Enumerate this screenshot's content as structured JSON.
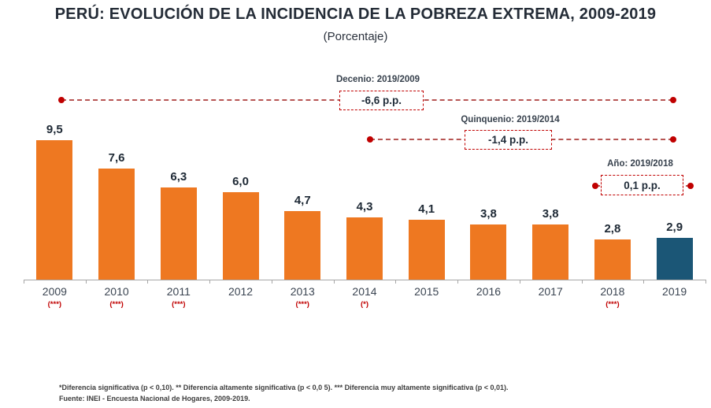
{
  "header": {
    "title": "PERÚ: EVOLUCIÓN DE LA INCIDENCIA DE LA POBREZA EXTREMA, 2009-2019",
    "subtitle": "(Porcentaje)"
  },
  "chart_data": {
    "type": "bar",
    "title": "PERÚ: EVOLUCIÓN DE LA INCIDENCIA DE LA POBREZA EXTREMA, 2009-2019",
    "subtitle": "(Porcentaje)",
    "categories": [
      "2009",
      "2010",
      "2011",
      "2012",
      "2013",
      "2014",
      "2015",
      "2016",
      "2017",
      "2018",
      "2019"
    ],
    "values": [
      9.5,
      7.6,
      6.3,
      6.0,
      4.7,
      4.3,
      4.1,
      3.8,
      3.8,
      2.8,
      2.9
    ],
    "value_labels": [
      "9,5",
      "7,6",
      "6,3",
      "6,0",
      "4,7",
      "4,3",
      "4,1",
      "3,8",
      "3,8",
      "2,8",
      "2,9"
    ],
    "significance_markers": [
      "(***)",
      "(***)",
      "(***)",
      "",
      "(***)",
      "(*)",
      "",
      "",
      "",
      "(***)",
      ""
    ],
    "highlight_index": 10,
    "ylim": [
      0,
      10
    ],
    "grid": false,
    "legend": "none",
    "colors": {
      "bar": "#ee7821",
      "bar_highlight": "#1b5676",
      "accent_red": "#c00000",
      "dash_red": "#b75553"
    },
    "annotations": [
      {
        "label": "Decenio: 2019/2009",
        "value": "-6,6 p.p."
      },
      {
        "label": "Quinquenio: 2019/2014",
        "value": "-1,4 p.p."
      },
      {
        "label": "Año:  2019/2018",
        "value": "0,1 p.p."
      }
    ]
  },
  "footer": {
    "note": "*Diferencia  significativa  (p <  0,10).   ** Diferencia  altamente  significativa  (p < 0,0 5). *** Diferencia  muy  altamente  significativa  (p < 0,01).",
    "source": "Fuente: INEI - Encuesta  Nacional  de Hogares,  2009-2019."
  }
}
